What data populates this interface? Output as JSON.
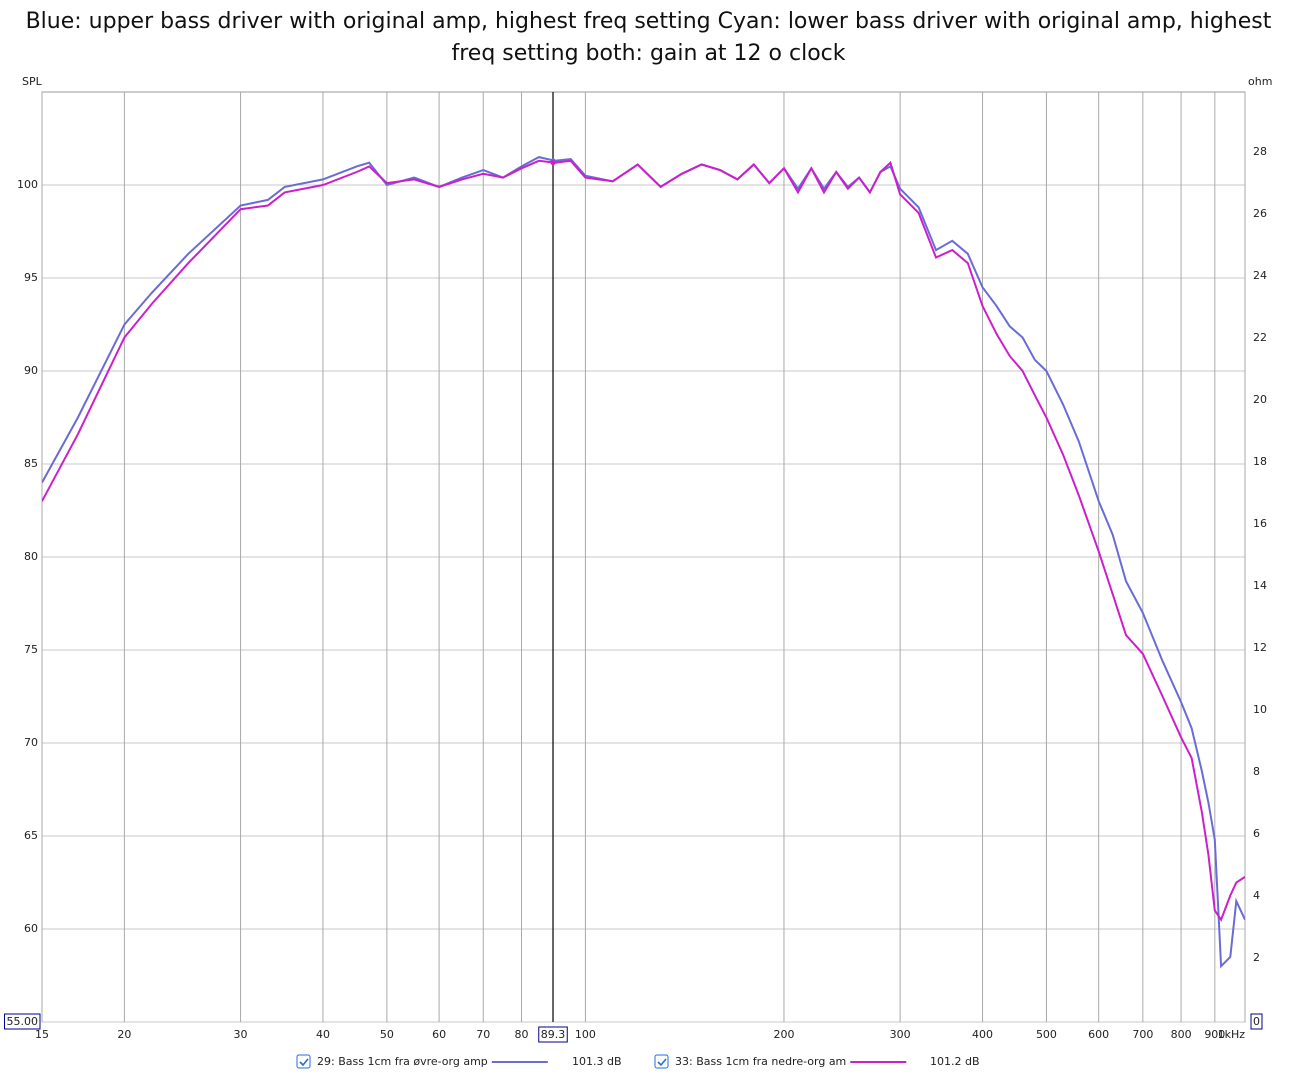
{
  "chart_data": {
    "type": "line",
    "title": "Blue: upper bass driver with original amp, highest freq setting Cyan: lower bass driver with original amp, highest freq setting both: gain at 12 o clock",
    "y_label": "SPL",
    "y2_label": "ohm",
    "log_x": true,
    "grid": true,
    "x": [
      15,
      17,
      20,
      22,
      25,
      30,
      33,
      35,
      40,
      45,
      47,
      50,
      55,
      60,
      65,
      70,
      75,
      80,
      85,
      90,
      95,
      100,
      110,
      120,
      130,
      140,
      150,
      160,
      170,
      180,
      190,
      200,
      210,
      220,
      230,
      240,
      250,
      260,
      270,
      280,
      290,
      300,
      320,
      340,
      360,
      380,
      400,
      420,
      440,
      460,
      480,
      500,
      530,
      560,
      600,
      630,
      660,
      700,
      750,
      800,
      830,
      860,
      880,
      900,
      920,
      950,
      970,
      1000
    ],
    "series": [
      {
        "name": "29: Bass 1cm fra øvre-org amp",
        "color": "#6b6bd6",
        "cursor_value": 101.3,
        "cursor_label": "101.3 dB",
        "values": [
          84.0,
          87.5,
          92.5,
          94.2,
          96.3,
          98.9,
          99.2,
          99.9,
          100.3,
          101.0,
          101.2,
          100.0,
          100.4,
          99.9,
          100.4,
          100.8,
          100.4,
          101.0,
          101.5,
          101.3,
          101.4,
          100.5,
          100.2,
          101.1,
          99.9,
          100.6,
          101.1,
          100.8,
          100.3,
          101.1,
          100.1,
          100.9,
          99.8,
          100.9,
          99.8,
          100.7,
          99.9,
          100.4,
          99.6,
          100.7,
          101.0,
          99.8,
          98.8,
          96.5,
          97.0,
          96.3,
          94.5,
          93.5,
          92.4,
          91.8,
          90.6,
          90.0,
          88.2,
          86.2,
          83.0,
          81.2,
          78.7,
          77.0,
          74.4,
          72.2,
          70.8,
          68.5,
          66.8,
          64.8,
          58,
          58.5,
          61.5,
          60.5
        ]
      },
      {
        "name": "33: Bass 1cm fra nedre-org am",
        "color": "#cc1fcc",
        "cursor_value": 101.2,
        "cursor_label": "101.2 dB",
        "values": [
          83.0,
          86.6,
          91.8,
          93.6,
          95.8,
          98.7,
          98.9,
          99.6,
          100.0,
          100.7,
          101.0,
          100.1,
          100.3,
          99.9,
          100.3,
          100.6,
          100.4,
          100.9,
          101.3,
          101.2,
          101.3,
          100.4,
          100.2,
          101.1,
          99.9,
          100.6,
          101.1,
          100.8,
          100.3,
          101.1,
          100.1,
          100.9,
          99.6,
          100.9,
          99.6,
          100.7,
          99.8,
          100.4,
          99.6,
          100.7,
          101.2,
          99.5,
          98.5,
          96.1,
          96.5,
          95.8,
          93.5,
          92.0,
          90.8,
          90.0,
          88.7,
          87.5,
          85.5,
          83.3,
          80.3,
          78.0,
          75.8,
          74.8,
          72.5,
          70.3,
          69.2,
          66.3,
          64.0,
          61.0,
          60.5,
          61.8,
          62.5,
          62.8
        ]
      }
    ],
    "xlim": [
      15,
      1000
    ],
    "xticks": [
      15,
      20,
      30,
      40,
      50,
      60,
      70,
      80,
      100,
      200,
      300,
      400,
      500,
      600,
      700,
      800,
      900,
      {
        "value": 1000,
        "label": "1kHz"
      }
    ],
    "ylim": [
      55,
      105
    ],
    "yticks": [
      {
        "value": 55,
        "label": "55.00"
      },
      60,
      65,
      70,
      75,
      80,
      85,
      90,
      95,
      100
    ],
    "y2lim": [
      0,
      30
    ],
    "y2ticks": [
      0,
      2,
      4,
      6,
      8,
      10,
      12,
      14,
      16,
      18,
      20,
      22,
      24,
      26,
      28
    ],
    "cursor_x": 89.3
  }
}
